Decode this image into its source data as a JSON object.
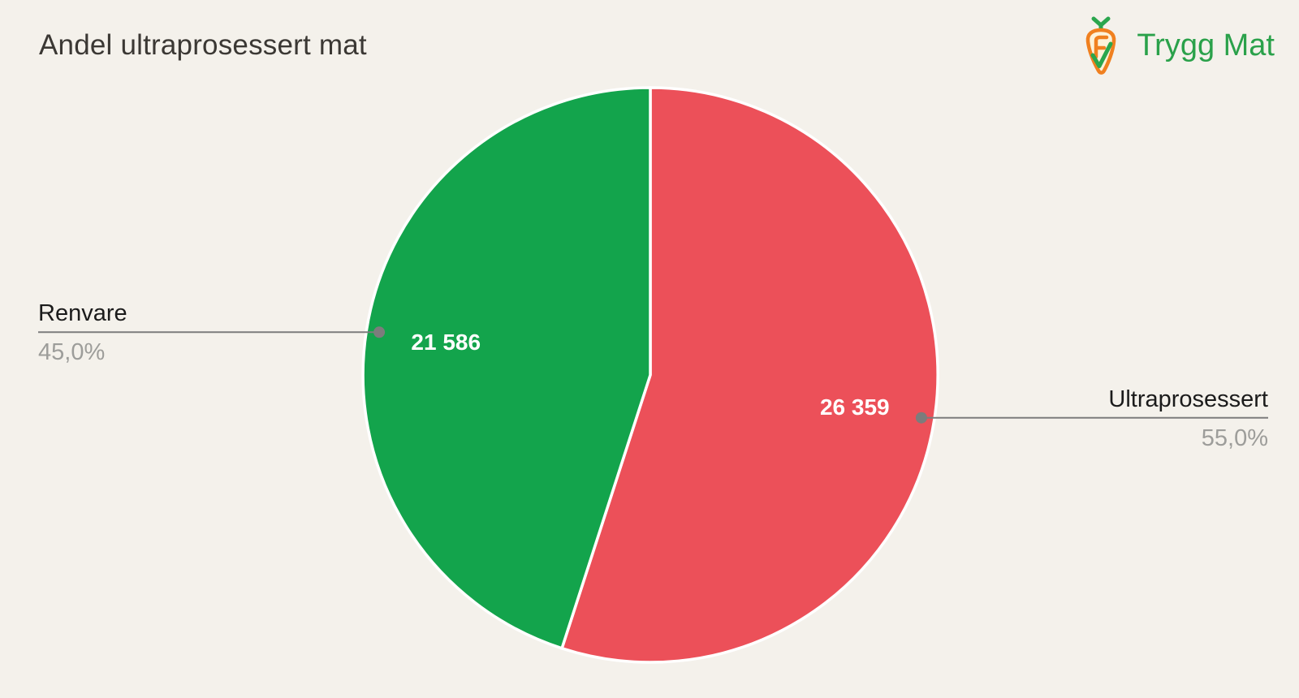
{
  "logo": {
    "text": "Trygg Mat",
    "brand_green": "#2aa14a",
    "brand_orange": "#f0801f"
  },
  "chart_data": {
    "type": "pie",
    "title": "Andel ultraprosessert mat",
    "slices": [
      {
        "label": "Ultraprosessert",
        "value": 26359,
        "value_label": "26 359",
        "pct": 55.0,
        "pct_label": "55,0%",
        "color": "#ec5059"
      },
      {
        "label": "Renvare",
        "value": 21586,
        "value_label": "21 586",
        "pct": 45.0,
        "pct_label": "45,0%",
        "color": "#13a44c"
      }
    ],
    "start_angle": "12-o-clock",
    "direction": "clockwise",
    "slice_border_color": "#ffffff",
    "connector_color": "#7c7c7c",
    "value_label_color": "#ffffff",
    "label_name_color": "#1b1b1b",
    "label_pct_color": "#9d9d9a",
    "background": "#f4f1eb",
    "legend": "none",
    "labels_position": "outside-with-connector",
    "values_position": "inside"
  }
}
